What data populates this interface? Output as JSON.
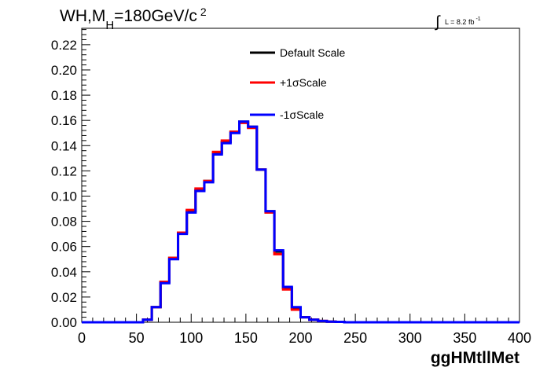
{
  "title": {
    "main_prefix": "WH,M",
    "main_sub": "H",
    "main_suffix": "=180GeV/c",
    "main_sup": "2"
  },
  "lumi": {
    "text": "L = 8.2 fb",
    "sup": "-1"
  },
  "legend": [
    {
      "label": "Default Scale",
      "color": "#000000"
    },
    {
      "label": "+1σScale",
      "color": "#ff0000"
    },
    {
      "label": "-1σScale",
      "color": "#0000ff"
    }
  ],
  "chart_data": {
    "type": "line",
    "style": "step-histogram",
    "title": "WH,MH=180GeV/c2",
    "xlabel": "ggHMtllMet",
    "ylabel": "",
    "xlim": [
      0,
      400
    ],
    "ylim": [
      0,
      0.233
    ],
    "xticks": [
      0,
      50,
      100,
      150,
      200,
      250,
      300,
      350,
      400
    ],
    "yticks": [
      "0.00",
      "0.02",
      "0.04",
      "0.06",
      "0.08",
      "0.10",
      "0.12",
      "0.14",
      "0.16",
      "0.18",
      "0.20",
      "0.22"
    ],
    "grid": false,
    "legend_position": "top-center",
    "bin_edges": [
      0,
      8,
      16,
      24,
      32,
      40,
      48,
      56,
      64,
      72,
      80,
      88,
      96,
      104,
      112,
      120,
      128,
      136,
      144,
      152,
      160,
      168,
      176,
      184,
      192,
      200,
      208,
      216,
      224,
      232,
      240,
      248,
      256,
      264,
      272,
      280,
      288,
      296,
      304,
      312,
      320,
      328,
      336,
      344,
      352,
      360,
      368,
      376,
      384,
      392,
      400
    ],
    "series": [
      {
        "name": "Default Scale",
        "color": "#000000",
        "values": [
          0,
          0,
          0,
          0,
          0,
          0,
          0,
          0.002,
          0.012,
          0.032,
          0.051,
          0.071,
          0.088,
          0.105,
          0.112,
          0.134,
          0.143,
          0.151,
          0.159,
          0.155,
          0.121,
          0.088,
          0.056,
          0.027,
          0.011,
          0.004,
          0.002,
          0.001,
          0.0005,
          0.0003,
          0,
          0,
          0,
          0,
          0,
          0,
          0,
          0,
          0,
          0,
          0,
          0,
          0,
          0,
          0,
          0,
          0,
          0,
          0,
          0
        ]
      },
      {
        "name": "+1σScale",
        "color": "#ff0000",
        "values": [
          0,
          0,
          0,
          0,
          0,
          0,
          0,
          0.002,
          0.012,
          0.032,
          0.051,
          0.071,
          0.089,
          0.106,
          0.112,
          0.135,
          0.144,
          0.151,
          0.158,
          0.154,
          0.121,
          0.087,
          0.054,
          0.026,
          0.01,
          0.004,
          0.002,
          0.001,
          0.0005,
          0.0003,
          0,
          0,
          0,
          0,
          0,
          0,
          0,
          0,
          0,
          0,
          0,
          0,
          0,
          0,
          0,
          0,
          0,
          0,
          0,
          0
        ]
      },
      {
        "name": "-1σScale",
        "color": "#0000ff",
        "values": [
          0,
          0,
          0,
          0,
          0,
          0,
          0,
          0.002,
          0.012,
          0.031,
          0.05,
          0.07,
          0.087,
          0.104,
          0.111,
          0.133,
          0.142,
          0.15,
          0.159,
          0.155,
          0.121,
          0.088,
          0.057,
          0.028,
          0.012,
          0.004,
          0.002,
          0.001,
          0.0005,
          0.0003,
          0,
          0,
          0,
          0,
          0,
          0,
          0,
          0,
          0,
          0,
          0,
          0,
          0,
          0,
          0,
          0,
          0,
          0,
          0,
          0
        ]
      }
    ]
  }
}
